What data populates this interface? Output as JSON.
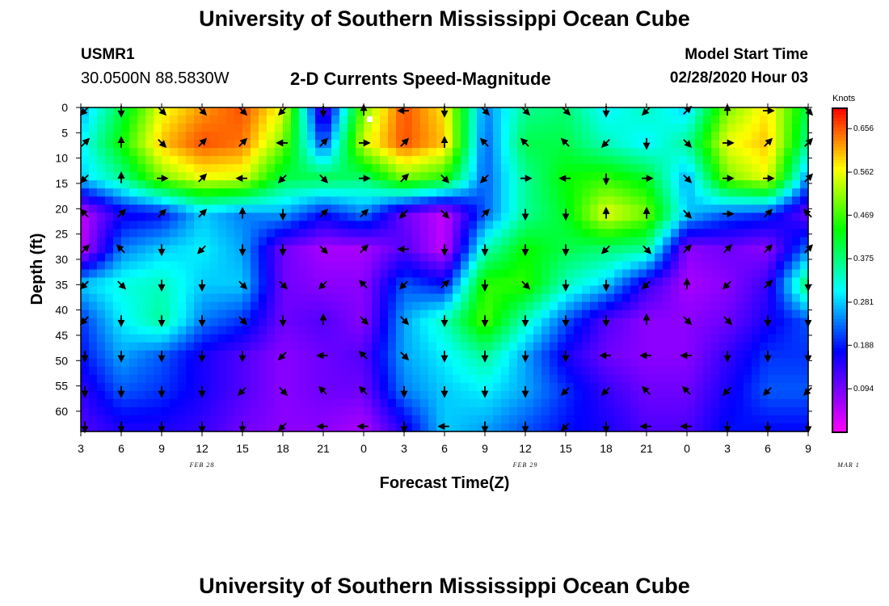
{
  "header": {
    "title": "University of Southern Mississippi Ocean Cube",
    "station": "USMR1",
    "location": "30.0500N 88.5830W",
    "subtitle": "2-D Currents Speed-Magnitude",
    "model_label": "Model Start Time",
    "model_time": "02/28/2020 Hour 03"
  },
  "footer": {
    "title": "University of Southern Mississippi Ocean Cube"
  },
  "chart_data": {
    "type": "heatmap",
    "title": "2-D Currents Speed-Magnitude",
    "xlabel": "Forecast Time(Z)",
    "ylabel": "Depth (ft)",
    "colorbar_label": "Knots",
    "colorbar_ticks": [
      "0.656",
      "0.562",
      "0.469",
      "0.375",
      "0.281",
      "0.188",
      "0.094"
    ],
    "colorbar_tick_values": [
      0.656,
      0.562,
      0.469,
      0.375,
      0.281,
      0.188,
      0.094
    ],
    "value_range": [
      0.0,
      0.7
    ],
    "x_tick_labels": [
      "3",
      "6",
      "9",
      "12",
      "15",
      "18",
      "21",
      "0",
      "3",
      "6",
      "9",
      "12",
      "15",
      "18",
      "21",
      "0",
      "3",
      "6",
      "9"
    ],
    "x_hours": [
      0,
      3,
      6,
      9,
      12,
      15,
      18,
      21,
      24,
      27,
      30,
      33,
      36,
      39,
      42,
      45,
      48,
      51,
      54
    ],
    "date_labels": [
      {
        "text": "FEB 28",
        "hour": 9
      },
      {
        "text": "FEB 29",
        "hour": 33
      },
      {
        "text": "MAR 1",
        "hour": 57
      }
    ],
    "y_tick_labels": [
      "0",
      "5",
      "10",
      "15",
      "20",
      "25",
      "30",
      "35",
      "40",
      "45",
      "50",
      "55",
      "60"
    ],
    "y_depths": [
      0,
      5,
      10,
      15,
      20,
      25,
      30,
      35,
      40,
      45,
      50,
      55,
      60
    ],
    "ylim": [
      0,
      64
    ],
    "xlim_hours": [
      0,
      54
    ],
    "grid_hours": [
      0,
      3,
      6,
      9,
      12,
      15,
      18,
      21,
      24,
      27,
      30,
      33,
      36,
      39,
      42,
      45,
      48,
      51,
      54
    ],
    "grid_depths": [
      0,
      7,
      14,
      21,
      28,
      35,
      42,
      49,
      56,
      63
    ],
    "speed": [
      [
        0.26,
        0.4,
        0.56,
        0.62,
        0.66,
        0.56,
        0.1,
        0.5,
        0.66,
        0.58,
        0.24,
        0.36,
        0.38,
        0.3,
        0.34,
        0.28,
        0.5,
        0.58,
        0.4
      ],
      [
        0.3,
        0.44,
        0.6,
        0.66,
        0.64,
        0.5,
        0.2,
        0.55,
        0.66,
        0.6,
        0.22,
        0.4,
        0.4,
        0.34,
        0.3,
        0.36,
        0.56,
        0.6,
        0.36
      ],
      [
        0.28,
        0.36,
        0.5,
        0.56,
        0.55,
        0.4,
        0.4,
        0.38,
        0.5,
        0.45,
        0.22,
        0.36,
        0.44,
        0.46,
        0.42,
        0.26,
        0.5,
        0.56,
        0.24
      ],
      [
        0.04,
        0.16,
        0.18,
        0.28,
        0.24,
        0.26,
        0.18,
        0.24,
        0.1,
        0.04,
        0.22,
        0.36,
        0.42,
        0.56,
        0.5,
        0.28,
        0.22,
        0.2,
        0.1
      ],
      [
        0.04,
        0.24,
        0.28,
        0.3,
        0.26,
        0.1,
        0.06,
        0.06,
        0.12,
        0.04,
        0.34,
        0.44,
        0.4,
        0.38,
        0.36,
        0.08,
        0.1,
        0.08,
        0.24
      ],
      [
        0.28,
        0.32,
        0.34,
        0.28,
        0.28,
        0.1,
        0.08,
        0.08,
        0.22,
        0.18,
        0.46,
        0.46,
        0.34,
        0.28,
        0.14,
        0.06,
        0.08,
        0.14,
        0.4
      ],
      [
        0.2,
        0.3,
        0.36,
        0.24,
        0.2,
        0.1,
        0.12,
        0.08,
        0.26,
        0.34,
        0.48,
        0.34,
        0.22,
        0.12,
        0.08,
        0.08,
        0.1,
        0.16,
        0.22
      ],
      [
        0.18,
        0.26,
        0.22,
        0.16,
        0.12,
        0.08,
        0.1,
        0.12,
        0.26,
        0.3,
        0.36,
        0.26,
        0.16,
        0.1,
        0.08,
        0.08,
        0.14,
        0.2,
        0.2
      ],
      [
        0.14,
        0.22,
        0.2,
        0.16,
        0.12,
        0.08,
        0.1,
        0.1,
        0.24,
        0.28,
        0.3,
        0.26,
        0.2,
        0.14,
        0.1,
        0.1,
        0.16,
        0.22,
        0.22
      ],
      [
        0.12,
        0.16,
        0.16,
        0.14,
        0.1,
        0.08,
        0.08,
        0.06,
        0.16,
        0.28,
        0.26,
        0.22,
        0.18,
        0.16,
        0.12,
        0.12,
        0.18,
        0.18,
        0.18
      ]
    ],
    "vectors": [
      [
        [
          -1,
          -1
        ],
        [
          0,
          -1
        ],
        [
          1,
          -1
        ],
        [
          1,
          -1
        ],
        [
          1,
          -1
        ],
        [
          -1,
          -1
        ],
        [
          0,
          -1
        ],
        [
          0,
          1
        ],
        [
          -1,
          0
        ],
        [
          0,
          -1
        ],
        [
          1,
          -1
        ],
        [
          1,
          -1
        ],
        [
          1,
          -1
        ],
        [
          0,
          -1
        ],
        [
          -1,
          -1
        ],
        [
          1,
          1
        ],
        [
          0,
          1
        ],
        [
          1,
          0
        ],
        [
          1,
          -1
        ]
      ],
      [
        [
          1,
          1
        ],
        [
          0,
          1
        ],
        [
          1,
          -1
        ],
        [
          1,
          1
        ],
        [
          1,
          1
        ],
        [
          -1,
          0
        ],
        [
          1,
          1
        ],
        [
          1,
          0
        ],
        [
          1,
          1
        ],
        [
          0,
          1
        ],
        [
          -1,
          1
        ],
        [
          -1,
          1
        ],
        [
          -1,
          1
        ],
        [
          -1,
          -1
        ],
        [
          0,
          -1
        ],
        [
          1,
          -1
        ],
        [
          1,
          0
        ],
        [
          1,
          1
        ],
        [
          1,
          1
        ]
      ],
      [
        [
          -1,
          -1
        ],
        [
          0,
          1
        ],
        [
          1,
          0
        ],
        [
          1,
          1
        ],
        [
          -1,
          0
        ],
        [
          -1,
          -1
        ],
        [
          1,
          -1
        ],
        [
          1,
          0
        ],
        [
          1,
          1
        ],
        [
          1,
          -1
        ],
        [
          -1,
          -1
        ],
        [
          1,
          0
        ],
        [
          -1,
          0
        ],
        [
          0,
          -1
        ],
        [
          1,
          0
        ],
        [
          1,
          -1
        ],
        [
          1,
          0
        ],
        [
          1,
          0
        ],
        [
          1,
          1
        ]
      ],
      [
        [
          -1,
          1
        ],
        [
          1,
          1
        ],
        [
          1,
          1
        ],
        [
          1,
          1
        ],
        [
          0,
          1
        ],
        [
          0,
          -1
        ],
        [
          1,
          1
        ],
        [
          1,
          1
        ],
        [
          -1,
          -1
        ],
        [
          1,
          -1
        ],
        [
          1,
          1
        ],
        [
          0,
          -1
        ],
        [
          0,
          -1
        ],
        [
          0,
          1
        ],
        [
          0,
          1
        ],
        [
          1,
          -1
        ],
        [
          1,
          0
        ],
        [
          1,
          1
        ],
        [
          -1,
          1
        ]
      ],
      [
        [
          1,
          1
        ],
        [
          -1,
          1
        ],
        [
          0,
          -1
        ],
        [
          -1,
          -1
        ],
        [
          0,
          -1
        ],
        [
          0,
          -1
        ],
        [
          1,
          -1
        ],
        [
          1,
          1
        ],
        [
          -1,
          0
        ],
        [
          0,
          -1
        ],
        [
          0,
          -1
        ],
        [
          0,
          -1
        ],
        [
          0,
          -1
        ],
        [
          -1,
          -1
        ],
        [
          1,
          -1
        ],
        [
          1,
          1
        ],
        [
          1,
          1
        ],
        [
          1,
          1
        ],
        [
          1,
          1
        ]
      ],
      [
        [
          -1,
          -1
        ],
        [
          1,
          -1
        ],
        [
          0,
          -1
        ],
        [
          0,
          -1
        ],
        [
          1,
          -1
        ],
        [
          1,
          -1
        ],
        [
          -1,
          -1
        ],
        [
          -1,
          1
        ],
        [
          -1,
          -1
        ],
        [
          1,
          1
        ],
        [
          0,
          -1
        ],
        [
          1,
          -1
        ],
        [
          0,
          -1
        ],
        [
          0,
          -1
        ],
        [
          -1,
          -1
        ],
        [
          0,
          1
        ],
        [
          -1,
          -1
        ],
        [
          1,
          1
        ],
        [
          0,
          -1
        ]
      ],
      [
        [
          -1,
          -1
        ],
        [
          0,
          -1
        ],
        [
          0,
          -1
        ],
        [
          0,
          -1
        ],
        [
          1,
          -1
        ],
        [
          0,
          -1
        ],
        [
          0,
          1
        ],
        [
          1,
          -1
        ],
        [
          1,
          -1
        ],
        [
          0,
          -1
        ],
        [
          0,
          -1
        ],
        [
          0,
          -1
        ],
        [
          0,
          -1
        ],
        [
          0,
          -1
        ],
        [
          0,
          1
        ],
        [
          1,
          -1
        ],
        [
          1,
          -1
        ],
        [
          0,
          -1
        ],
        [
          0,
          -1
        ]
      ],
      [
        [
          0,
          -1
        ],
        [
          0,
          -1
        ],
        [
          0,
          -1
        ],
        [
          0,
          -1
        ],
        [
          0,
          -1
        ],
        [
          -1,
          -1
        ],
        [
          -1,
          0
        ],
        [
          -1,
          1
        ],
        [
          1,
          -1
        ],
        [
          0,
          -1
        ],
        [
          0,
          -1
        ],
        [
          0,
          -1
        ],
        [
          0,
          -1
        ],
        [
          -1,
          0
        ],
        [
          -1,
          0
        ],
        [
          -1,
          0
        ],
        [
          0,
          -1
        ],
        [
          0,
          -1
        ],
        [
          0,
          -1
        ]
      ],
      [
        [
          0,
          -1
        ],
        [
          0,
          -1
        ],
        [
          0,
          -1
        ],
        [
          0,
          -1
        ],
        [
          -1,
          -1
        ],
        [
          1,
          -1
        ],
        [
          -1,
          1
        ],
        [
          -1,
          1
        ],
        [
          0,
          -1
        ],
        [
          0,
          -1
        ],
        [
          0,
          -1
        ],
        [
          0,
          -1
        ],
        [
          -1,
          -1
        ],
        [
          -1,
          -1
        ],
        [
          -1,
          1
        ],
        [
          -1,
          1
        ],
        [
          -1,
          -1
        ],
        [
          -1,
          -1
        ],
        [
          -1,
          -1
        ]
      ],
      [
        [
          0,
          -1
        ],
        [
          0,
          -1
        ],
        [
          0,
          -1
        ],
        [
          0,
          -1
        ],
        [
          0,
          -1
        ],
        [
          -1,
          -1
        ],
        [
          -1,
          0
        ],
        [
          -1,
          0
        ],
        [
          0,
          -1
        ],
        [
          -1,
          0
        ],
        [
          0,
          -1
        ],
        [
          0,
          -1
        ],
        [
          -1,
          -1
        ],
        [
          0,
          -1
        ],
        [
          -1,
          0
        ],
        [
          -1,
          0
        ],
        [
          0,
          -1
        ],
        [
          0,
          -1
        ],
        [
          0,
          -1
        ]
      ]
    ]
  }
}
